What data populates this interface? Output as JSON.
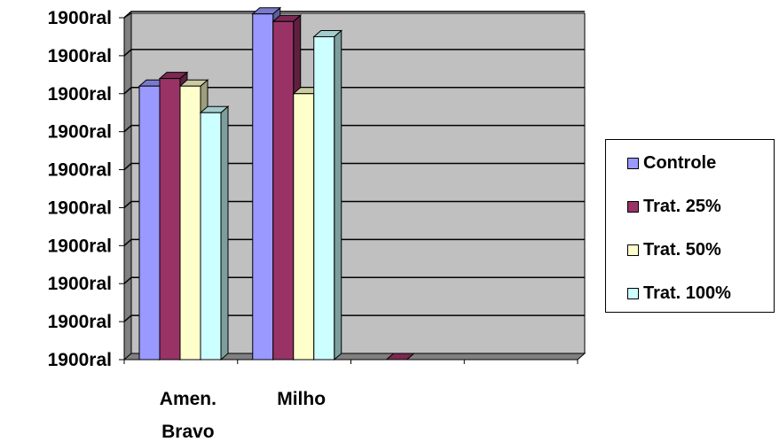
{
  "chart_data": {
    "type": "bar",
    "title": "",
    "xlabel": "",
    "ylabel": "",
    "categories": [
      "Amen. Bravo",
      "Milho",
      "",
      ""
    ],
    "category_lines": [
      [
        "Amen.",
        "Bravo"
      ],
      [
        "Milho"
      ],
      [],
      []
    ],
    "y_tick_labels": [
      "1900ral",
      "1900ral",
      "1900ral",
      "1900ral",
      "1900ral",
      "1900ral",
      "1900ral",
      "1900ral",
      "1900ral",
      "1900ral"
    ],
    "ylim": [
      0,
      9
    ],
    "grid": true,
    "three_d": true,
    "legend_position": "right",
    "plot_background": "#c0c0c0",
    "series": [
      {
        "name": "Controle",
        "color": "#9999ff",
        "values": [
          7.2,
          9.1,
          null,
          null
        ]
      },
      {
        "name": "Trat. 25%",
        "color": "#993366",
        "values": [
          7.4,
          8.9,
          0,
          null
        ]
      },
      {
        "name": "Trat. 50%",
        "color": "#ffffcc",
        "values": [
          7.2,
          7.0,
          null,
          null
        ]
      },
      {
        "name": "Trat. 100%",
        "color": "#ccffff",
        "values": [
          6.5,
          8.5,
          null,
          null
        ]
      }
    ]
  }
}
